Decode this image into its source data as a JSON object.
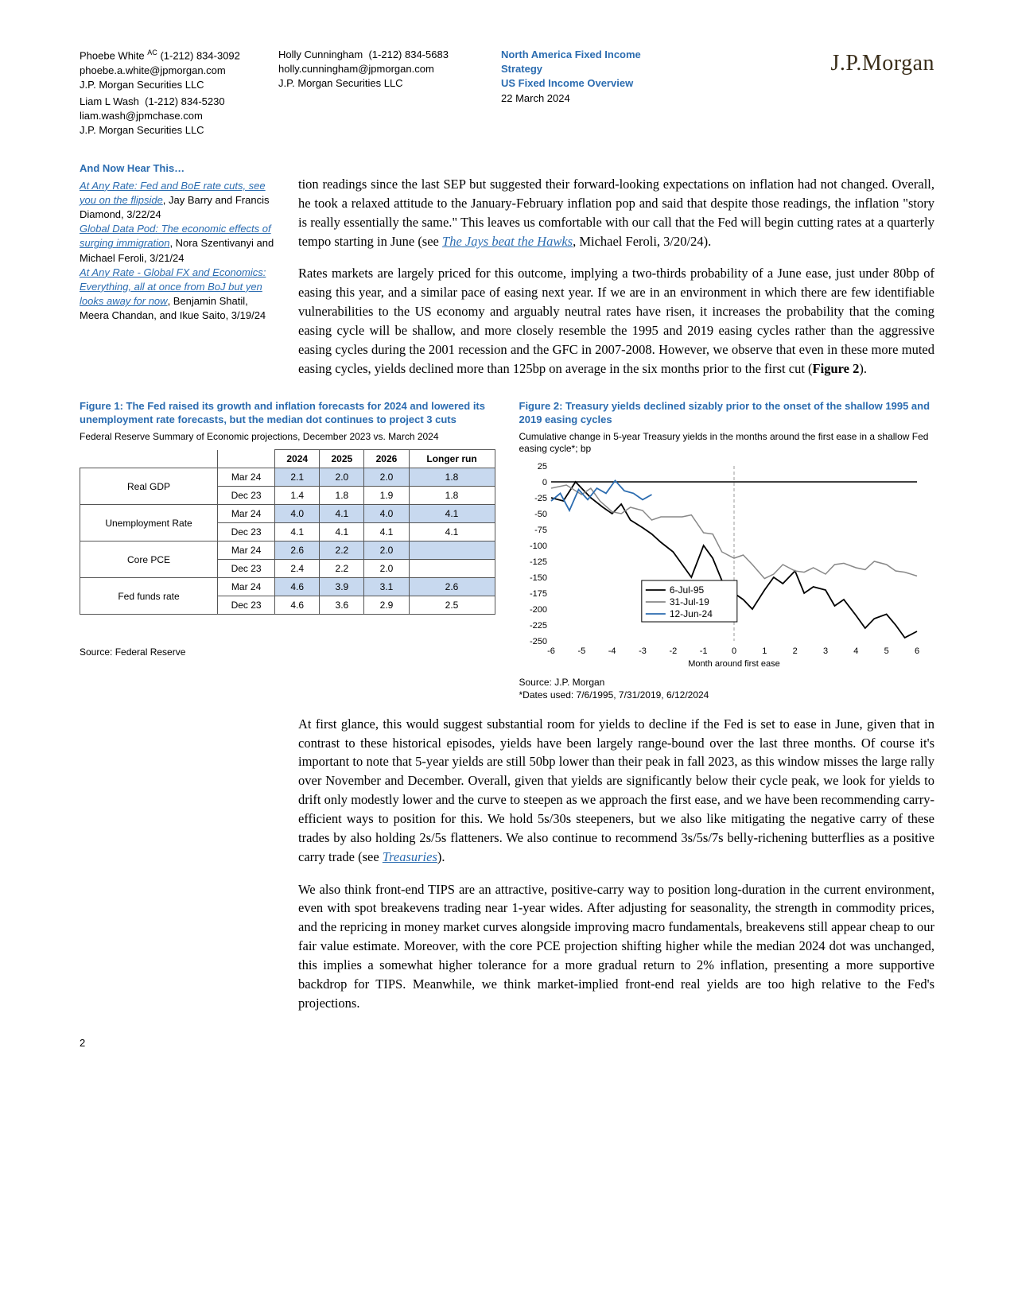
{
  "header": {
    "authors": [
      {
        "name": "Phoebe White",
        "sup": "AC",
        "phone": "(1-212) 834-3092",
        "email": "phoebe.a.white@jpmorgan.com",
        "firm": "J.P. Morgan Securities LLC"
      },
      {
        "name": "Liam L Wash",
        "phone": "(1-212) 834-5230",
        "email": "liam.wash@jpmchase.com",
        "firm": "J.P. Morgan Securities LLC"
      },
      {
        "name": "Holly Cunningham",
        "phone": "(1-212) 834-5683",
        "email": "holly.cunningham@jpmorgan.com",
        "firm": "J.P. Morgan Securities LLC"
      }
    ],
    "series1": "North America Fixed Income Strategy",
    "series2": "US Fixed Income Overview",
    "date": "22 March 2024",
    "logo": "J.P.Morgan"
  },
  "sidebar": {
    "title": "And Now Hear This…",
    "items": [
      {
        "link": "At Any Rate: Fed and BoE rate cuts, see you on the flipside",
        "tail": ", Jay Barry and Francis Diamond, 3/22/24"
      },
      {
        "link": "Global Data Pod: The economic effects of surging immigration",
        "tail": ", Nora Szentivanyi and Michael Feroli, 3/21/24"
      },
      {
        "link": "At Any Rate - Global FX and Economics: Everything, all at once from BoJ but yen looks away for now",
        "tail": ", Benjamin Shatil, Meera Chandan, and Ikue Saito, 3/19/24"
      }
    ]
  },
  "para1a": "tion readings since the last SEP but suggested their forward-looking expectations on inflation had not changed. Overall, he took a relaxed attitude to the January-February inflation pop and said that despite those readings, the inflation \"story is really essentially the same.\" This leaves us comfortable with our call that the Fed will begin cutting rates at a quarterly tempo starting in June (see ",
  "para1link": "The Jays beat the Hawks",
  "para1b": ", Michael Feroli, 3/20/24).",
  "para2": "Rates markets are largely priced for this outcome, implying a two-thirds probability of a June ease, just under 80bp of easing this year, and a similar pace of easing next year. If we are in an environment in which there are few identifiable vulnerabilities to the US economy and arguably neutral rates have risen, it increases the probability that the coming easing cycle will be shallow, and more closely resemble the 1995 and 2019 easing cycles rather than the aggressive easing cycles during the 2001 recession and the GFC in 2007-2008. However, we observe that even in these more muted easing cycles, yields declined more than 125bp on average in the six months prior to the first cut (",
  "para2bold": "Figure 2",
  "para2c": ").",
  "fig1": {
    "title": "Figure 1: The Fed raised its growth and inflation forecasts for 2024 and lowered its unemployment rate forecasts, but the median dot continues to project 3 cuts",
    "sub": "Federal Reserve Summary of Economic projections, December 2023 vs. March 2024",
    "cols": [
      "2024",
      "2025",
      "2026",
      "Longer run"
    ],
    "rows": [
      {
        "label": "Real GDP",
        "mar": [
          "2.1",
          "2.0",
          "2.0",
          "1.8"
        ],
        "dec": [
          "1.4",
          "1.8",
          "1.9",
          "1.8"
        ]
      },
      {
        "label": "Unemployment Rate",
        "mar": [
          "4.0",
          "4.1",
          "4.0",
          "4.1"
        ],
        "dec": [
          "4.1",
          "4.1",
          "4.1",
          "4.1"
        ]
      },
      {
        "label": "Core PCE",
        "mar": [
          "2.6",
          "2.2",
          "2.0",
          ""
        ],
        "dec": [
          "2.4",
          "2.2",
          "2.0",
          ""
        ]
      },
      {
        "label": "Fed funds rate",
        "mar": [
          "4.6",
          "3.9",
          "3.1",
          "2.6"
        ],
        "dec": [
          "4.6",
          "3.6",
          "2.9",
          "2.5"
        ]
      }
    ],
    "periods": [
      "Mar 24",
      "Dec 23"
    ],
    "source": "Source: Federal Reserve"
  },
  "fig2": {
    "title": "Figure 2: Treasury yields declined sizably prior to the onset of the shallow 1995 and 2019 easing cycles",
    "sub": "Cumulative change in 5-year Treasury yields in the months around the first ease in a shallow Fed easing cycle*; bp",
    "source": "Source: J.P. Morgan",
    "footnote": "*Dates used: 7/6/1995, 7/31/2019, 6/12/2024",
    "legend": [
      "6-Jul-95",
      "31-Jul-19",
      "12-Jun-24"
    ],
    "colors": {
      "s1995": "#000000",
      "s2019": "#888888",
      "s2024": "#2b6cb0",
      "grid": "#999",
      "zero": "#000"
    },
    "ylim": [
      -250,
      25
    ],
    "ytick": 25,
    "xlim": [
      -6,
      6
    ],
    "xtick": 1,
    "xlabel": "Month around first ease",
    "series": {
      "s1995": [
        [
          -6,
          -25
        ],
        [
          -5.6,
          -30
        ],
        [
          -5.2,
          0
        ],
        [
          -5,
          -10
        ],
        [
          -4.7,
          -25
        ],
        [
          -4.3,
          -40
        ],
        [
          -4,
          -50
        ],
        [
          -3.7,
          -35
        ],
        [
          -3.4,
          -60
        ],
        [
          -3,
          -72
        ],
        [
          -2.7,
          -82
        ],
        [
          -2.4,
          -95
        ],
        [
          -2,
          -110
        ],
        [
          -1.7,
          -130
        ],
        [
          -1.4,
          -150
        ],
        [
          -1,
          -100
        ],
        [
          -0.7,
          -120
        ],
        [
          -0.4,
          -155
        ],
        [
          0,
          -175
        ],
        [
          0.3,
          -185
        ],
        [
          0.6,
          -200
        ],
        [
          1,
          -170
        ],
        [
          1.3,
          -150
        ],
        [
          1.6,
          -160
        ],
        [
          2,
          -140
        ],
        [
          2.3,
          -175
        ],
        [
          2.6,
          -165
        ],
        [
          3,
          -170
        ],
        [
          3.3,
          -195
        ],
        [
          3.6,
          -185
        ],
        [
          4,
          -210
        ],
        [
          4.3,
          -230
        ],
        [
          4.6,
          -215
        ],
        [
          5,
          -208
        ],
        [
          5.3,
          -225
        ],
        [
          5.6,
          -245
        ],
        [
          6,
          -235
        ]
      ],
      "s2019": [
        [
          -6,
          -10
        ],
        [
          -5.5,
          -5
        ],
        [
          -5,
          -20
        ],
        [
          -4.7,
          -10
        ],
        [
          -4.4,
          -30
        ],
        [
          -4,
          -47
        ],
        [
          -3.7,
          -50
        ],
        [
          -3.4,
          -40
        ],
        [
          -3,
          -45
        ],
        [
          -2.7,
          -60
        ],
        [
          -2.4,
          -55
        ],
        [
          -2,
          -55
        ],
        [
          -1.7,
          -55
        ],
        [
          -1.4,
          -52
        ],
        [
          -1,
          -80
        ],
        [
          -0.7,
          -82
        ],
        [
          -0.4,
          -110
        ],
        [
          0,
          -120
        ],
        [
          0.3,
          -115
        ],
        [
          0.6,
          -130
        ],
        [
          1,
          -152
        ],
        [
          1.3,
          -145
        ],
        [
          1.6,
          -130
        ],
        [
          2,
          -140
        ],
        [
          2.3,
          -142
        ],
        [
          2.6,
          -135
        ],
        [
          3,
          -145
        ],
        [
          3.3,
          -130
        ],
        [
          3.6,
          -128
        ],
        [
          4,
          -135
        ],
        [
          4.3,
          -138
        ],
        [
          4.6,
          -125
        ],
        [
          5,
          -130
        ],
        [
          5.3,
          -140
        ],
        [
          5.6,
          -142
        ],
        [
          6,
          -148
        ]
      ],
      "s2024": [
        [
          -6,
          -30
        ],
        [
          -5.7,
          -18
        ],
        [
          -5.4,
          -45
        ],
        [
          -5.1,
          -12
        ],
        [
          -4.8,
          -28
        ],
        [
          -4.5,
          -10
        ],
        [
          -4.2,
          -18
        ],
        [
          -3.9,
          2
        ],
        [
          -3.6,
          -14
        ],
        [
          -3.3,
          -18
        ],
        [
          -3,
          -28
        ],
        [
          -2.7,
          -20
        ]
      ]
    }
  },
  "para3a": "At first glance, this would suggest substantial room for yields to decline if the Fed is set to ease in June, given that in contrast to these historical episodes, yields have been largely range-bound over the last three months. Of course it's important to note that 5-year yields are still 50bp lower than their peak in fall 2023, as this window misses the large rally over November and December. Overall, given that yields are significantly below their cycle peak, we look for yields to drift only modestly lower and the curve to steepen as we approach the first ease, and we have been recommending carry-efficient ways to position for this. We hold 5s/30s steepeners, but we also like mitigating the negative carry of these trades by also holding 2s/5s flatteners. We also continue to recommend 3s/5s/7s belly-richening butterflies as a positive carry trade (see ",
  "para3link": "Treasuries",
  "para3b": ").",
  "para4": "We also think front-end TIPS are an attractive, positive-carry way to position long-duration in the current environment, even with spot breakevens trading near 1-year wides. After adjusting for seasonality, the strength in commodity prices, and the repricing in money market curves alongside improving macro fundamentals, breakevens still appear cheap to our fair value estimate. Moreover, with the core PCE projection shifting higher while the median 2024 dot was unchanged, this implies a somewhat higher tolerance for a more gradual return to 2% inflation, presenting a more supportive backdrop for TIPS. Meanwhile, we think market-implied front-end real yields are too high relative to the Fed's projections.",
  "pagenum": "2"
}
